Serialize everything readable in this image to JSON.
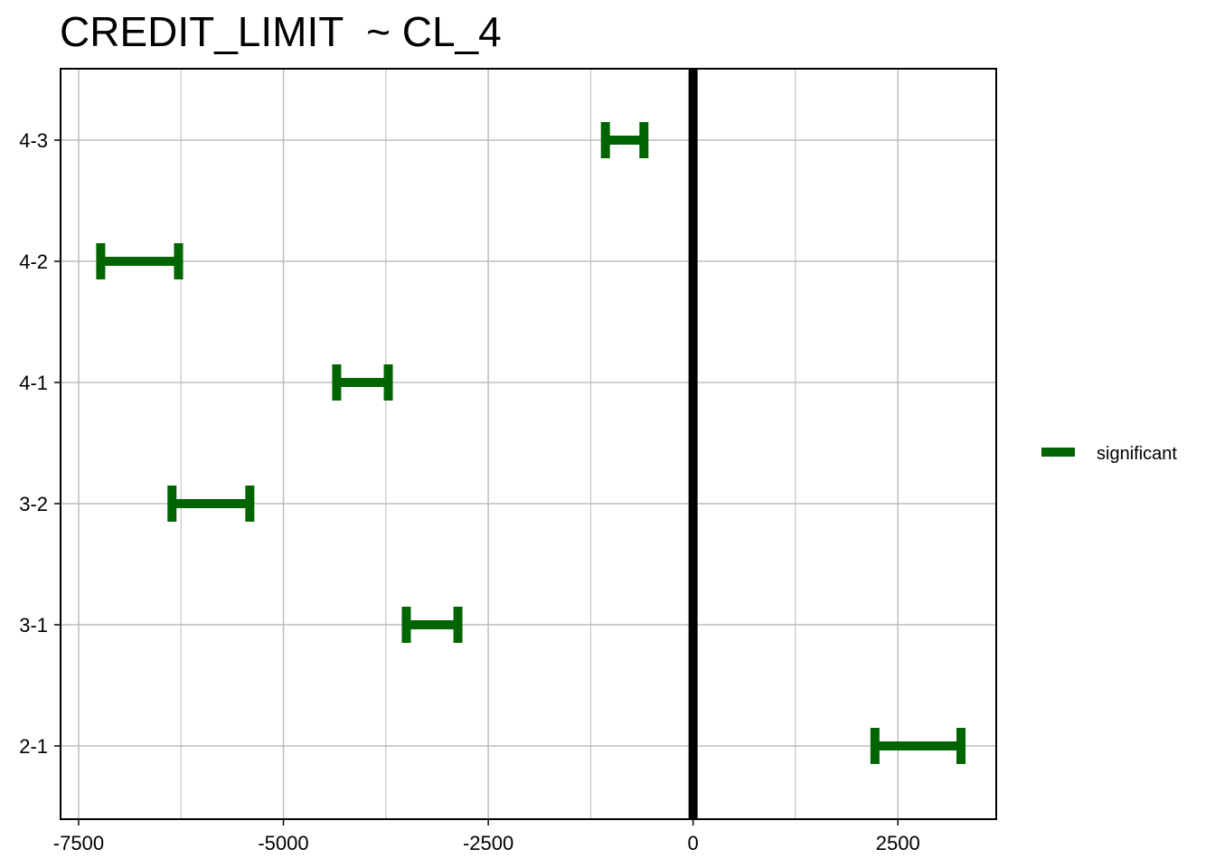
{
  "chart_data": {
    "type": "errorbar",
    "title": "CREDIT_LIMIT  ~ CL_4",
    "xlabel": "",
    "ylabel": "",
    "xlim": [
      -7720,
      3700
    ],
    "x_ticks": [
      -7500,
      -5000,
      -2500,
      0,
      2500
    ],
    "x_tick_labels": [
      "-7500",
      "-5000",
      "-2500",
      "0",
      "2500"
    ],
    "categories": [
      "4-3",
      "4-2",
      "4-1",
      "3-2",
      "3-1",
      "2-1"
    ],
    "intervals": [
      {
        "label": "4-3",
        "low": -1070,
        "high": -600,
        "status": "significant"
      },
      {
        "label": "4-2",
        "low": -7230,
        "high": -6280,
        "status": "significant"
      },
      {
        "label": "4-1",
        "low": -4350,
        "high": -3720,
        "status": "significant"
      },
      {
        "label": "3-2",
        "low": -6360,
        "high": -5410,
        "status": "significant"
      },
      {
        "label": "3-1",
        "low": -3500,
        "high": -2870,
        "status": "significant"
      },
      {
        "label": "2-1",
        "low": 2220,
        "high": 3270,
        "status": "significant"
      }
    ],
    "reference_line": 0,
    "grid": true,
    "legend": {
      "position": "right",
      "entries": [
        {
          "name": "significant",
          "color": "#006400"
        }
      ]
    },
    "colors": {
      "significant": "#006400",
      "reference": "#000000",
      "grid": "#bdbdbd"
    }
  }
}
